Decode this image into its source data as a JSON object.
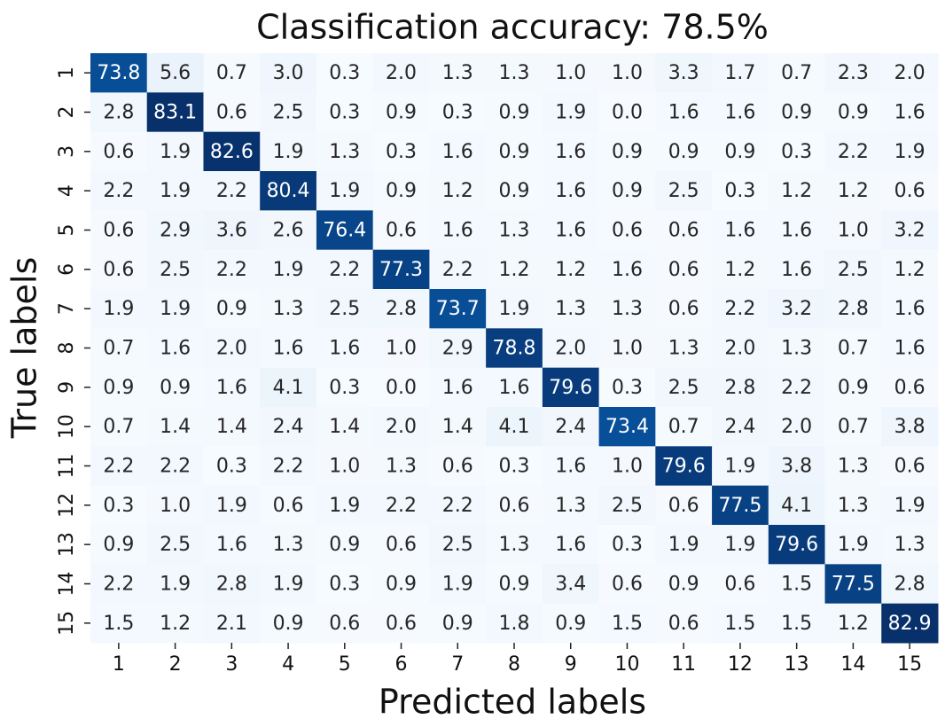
{
  "chart_data": {
    "type": "heatmap",
    "title": "Classification accuracy: 78.5%",
    "x_label": "Predicted labels",
    "y_label": "True labels",
    "x_categories": [
      "1",
      "2",
      "3",
      "4",
      "5",
      "6",
      "7",
      "8",
      "9",
      "10",
      "11",
      "12",
      "13",
      "14",
      "15"
    ],
    "y_categories": [
      "1",
      "2",
      "3",
      "4",
      "5",
      "6",
      "7",
      "8",
      "9",
      "10",
      "11",
      "12",
      "13",
      "14",
      "15"
    ],
    "colormap": "Blues",
    "values": [
      [
        73.8,
        5.6,
        0.7,
        3.0,
        0.3,
        2.0,
        1.3,
        1.3,
        1.0,
        1.0,
        3.3,
        1.7,
        0.7,
        2.3,
        2.0
      ],
      [
        2.8,
        83.1,
        0.6,
        2.5,
        0.3,
        0.9,
        0.3,
        0.9,
        1.9,
        0.0,
        1.6,
        1.6,
        0.9,
        0.9,
        1.6
      ],
      [
        0.6,
        1.9,
        82.6,
        1.9,
        1.3,
        0.3,
        1.6,
        0.9,
        1.6,
        0.9,
        0.9,
        0.9,
        0.3,
        2.2,
        1.9
      ],
      [
        2.2,
        1.9,
        2.2,
        80.4,
        1.9,
        0.9,
        1.2,
        0.9,
        1.6,
        0.9,
        2.5,
        0.3,
        1.2,
        1.2,
        0.6
      ],
      [
        0.6,
        2.9,
        3.6,
        2.6,
        76.4,
        0.6,
        1.6,
        1.3,
        1.6,
        0.6,
        0.6,
        1.6,
        1.6,
        1.0,
        3.2
      ],
      [
        0.6,
        2.5,
        2.2,
        1.9,
        2.2,
        77.3,
        2.2,
        1.2,
        1.2,
        1.6,
        0.6,
        1.2,
        1.6,
        2.5,
        1.2
      ],
      [
        1.9,
        1.9,
        0.9,
        1.3,
        2.5,
        2.8,
        73.7,
        1.9,
        1.3,
        1.3,
        0.6,
        2.2,
        3.2,
        2.8,
        1.6
      ],
      [
        0.7,
        1.6,
        2.0,
        1.6,
        1.6,
        1.0,
        2.9,
        78.8,
        2.0,
        1.0,
        1.3,
        2.0,
        1.3,
        0.7,
        1.6
      ],
      [
        0.9,
        0.9,
        1.6,
        4.1,
        0.3,
        0.0,
        1.6,
        1.6,
        79.6,
        0.3,
        2.5,
        2.8,
        2.2,
        0.9,
        0.6
      ],
      [
        0.7,
        1.4,
        1.4,
        2.4,
        1.4,
        2.0,
        1.4,
        4.1,
        2.4,
        73.4,
        0.7,
        2.4,
        2.0,
        0.7,
        3.8
      ],
      [
        2.2,
        2.2,
        0.3,
        2.2,
        1.0,
        1.3,
        0.6,
        0.3,
        1.6,
        1.0,
        79.6,
        1.9,
        3.8,
        1.3,
        0.6
      ],
      [
        0.3,
        1.0,
        1.9,
        0.6,
        1.9,
        2.2,
        2.2,
        0.6,
        1.3,
        2.5,
        0.6,
        77.5,
        4.1,
        1.3,
        1.9
      ],
      [
        0.9,
        2.5,
        1.6,
        1.3,
        0.9,
        0.6,
        2.5,
        1.3,
        1.6,
        0.3,
        1.9,
        1.9,
        79.6,
        1.9,
        1.3
      ],
      [
        2.2,
        1.9,
        2.8,
        1.9,
        0.3,
        0.9,
        1.9,
        0.9,
        3.4,
        0.6,
        0.9,
        0.6,
        1.5,
        77.5,
        2.8
      ],
      [
        1.5,
        1.2,
        2.1,
        0.9,
        0.6,
        0.6,
        0.9,
        1.8,
        0.9,
        1.5,
        0.6,
        1.5,
        1.5,
        1.2,
        82.9
      ]
    ],
    "value_labels": [
      [
        "73.8",
        "5.6",
        "0.7",
        "3.0",
        "0.3",
        "2.0",
        "1.3",
        "1.3",
        "1.0",
        "1.0",
        "3.3",
        "1.7",
        "0.7",
        "2.3",
        "2.0"
      ],
      [
        "2.8",
        "83.1",
        "0.6",
        "2.5",
        "0.3",
        "0.9",
        "0.3",
        "0.9",
        "1.9",
        "0.0",
        "1.6",
        "1.6",
        "0.9",
        "0.9",
        "1.6"
      ],
      [
        "0.6",
        "1.9",
        "82.6",
        "1.9",
        "1.3",
        "0.3",
        "1.6",
        "0.9",
        "1.6",
        "0.9",
        "0.9",
        "0.9",
        "0.3",
        "2.2",
        "1.9"
      ],
      [
        "2.2",
        "1.9",
        "2.2",
        "80.4",
        "1.9",
        "0.9",
        "1.2",
        "0.9",
        "1.6",
        "0.9",
        "2.5",
        "0.3",
        "1.2",
        "1.2",
        "0.6"
      ],
      [
        "0.6",
        "2.9",
        "3.6",
        "2.6",
        "76.4",
        "0.6",
        "1.6",
        "1.3",
        "1.6",
        "0.6",
        "0.6",
        "1.6",
        "1.6",
        "1.0",
        "3.2"
      ],
      [
        "0.6",
        "2.5",
        "2.2",
        "1.9",
        "2.2",
        "77.3",
        "2.2",
        "1.2",
        "1.2",
        "1.6",
        "0.6",
        "1.2",
        "1.6",
        "2.5",
        "1.2"
      ],
      [
        "1.9",
        "1.9",
        "0.9",
        "1.3",
        "2.5",
        "2.8",
        "73.7",
        "1.9",
        "1.3",
        "1.3",
        "0.6",
        "2.2",
        "3.2",
        "2.8",
        "1.6"
      ],
      [
        "0.7",
        "1.6",
        "2.0",
        "1.6",
        "1.6",
        "1.0",
        "2.9",
        "78.8",
        "2.0",
        "1.0",
        "1.3",
        "2.0",
        "1.3",
        "0.7",
        "1.6"
      ],
      [
        "0.9",
        "0.9",
        "1.6",
        "4.1",
        "0.3",
        "0.0",
        "1.6",
        "1.6",
        "79.6",
        "0.3",
        "2.5",
        "2.8",
        "2.2",
        "0.9",
        "0.6"
      ],
      [
        "0.7",
        "1.4",
        "1.4",
        "2.4",
        "1.4",
        "2.0",
        "1.4",
        "4.1",
        "2.4",
        "73.4",
        "0.7",
        "2.4",
        "2.0",
        "0.7",
        "3.8"
      ],
      [
        "2.2",
        "2.2",
        "0.3",
        "2.2",
        "1.0",
        "1.3",
        "0.6",
        "0.3",
        "1.6",
        "1.0",
        "79.6",
        "1.9",
        "3.8",
        "1.3",
        "0.6"
      ],
      [
        "0.3",
        "1.0",
        "1.9",
        "0.6",
        "1.9",
        "2.2",
        "2.2",
        "0.6",
        "1.3",
        "2.5",
        "0.6",
        "77.5",
        "4.1",
        "1.3",
        "1.9"
      ],
      [
        "0.9",
        "2.5",
        "1.6",
        "1.3",
        "0.9",
        "0.6",
        "2.5",
        "1.3",
        "1.6",
        "0.3",
        "1.9",
        "1.9",
        "79.6",
        "1.9",
        "1.3"
      ],
      [
        "2.2",
        "1.9",
        "2.8",
        "1.9",
        "0.3",
        "0.9",
        "1.9",
        "0.9",
        "3.4",
        "0.6",
        "0.9",
        "0.6",
        "1.5",
        "77.5",
        "2.8"
      ],
      [
        "1.5",
        "1.2",
        "2.1",
        "0.9",
        "0.6",
        "0.6",
        "0.9",
        "1.8",
        "0.9",
        "1.5",
        "0.6",
        "1.5",
        "1.5",
        "1.2",
        "82.9"
      ]
    ]
  }
}
